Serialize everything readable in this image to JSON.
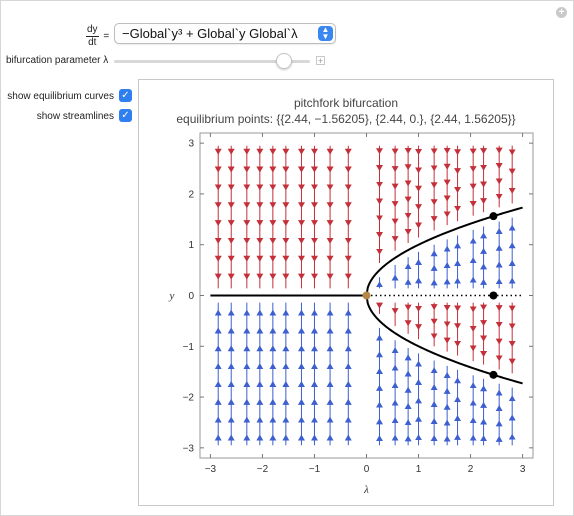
{
  "controls": {
    "ode": {
      "lhs_numerator": "dy",
      "lhs_denominator": "dt",
      "equals": "=",
      "selected": "−Global`y³ + Global`y Global`λ"
    },
    "parameter": {
      "label": "bifurcation parameter λ",
      "value": 2.44,
      "min": -3,
      "max": 3
    },
    "toggles": [
      {
        "label": "show equilibrium curves",
        "checked": true
      },
      {
        "label": "show streamlines",
        "checked": true
      }
    ]
  },
  "chart_data": {
    "type": "vector-field",
    "title": "pitchfork bifurcation",
    "subtitle": "equilibrium points: {{2.44, −1.56205}, {2.44, 0.}, {2.44, 1.56205}}",
    "xlabel": "λ",
    "ylabel": "y",
    "xlim": [
      -3.2,
      3.2
    ],
    "ylim": [
      -3.2,
      3.2
    ],
    "xticks": [
      -3,
      -2,
      -1,
      0,
      1,
      2,
      3
    ],
    "yticks": [
      -3,
      -2,
      -1,
      0,
      1,
      2,
      3
    ],
    "xtick_labels": [
      "−3",
      "−2",
      "−1",
      "0",
      "1",
      "2",
      "3"
    ],
    "ytick_labels": [
      "−3",
      "−2",
      "−1",
      "0",
      "1",
      "2",
      "3"
    ],
    "equilibrium_curves": [
      {
        "name": "stable zero branch",
        "from": -3,
        "to": 0,
        "y": 0,
        "style": "solid"
      },
      {
        "name": "unstable zero branch",
        "from": 0,
        "to": 3,
        "y": 0,
        "style": "dotted"
      },
      {
        "name": "upper branch",
        "formula": "sqrt(lambda)",
        "from": 0,
        "to": 3,
        "style": "solid"
      },
      {
        "name": "lower branch",
        "formula": "-sqrt(lambda)",
        "from": 0,
        "to": 3,
        "style": "solid"
      }
    ],
    "bifurcation_point": {
      "x": 0,
      "y": 0
    },
    "equilibrium_points": [
      [
        2.44,
        -1.56205
      ],
      [
        2.44,
        0.0
      ],
      [
        2.44,
        1.56205
      ]
    ],
    "stream_columns_x": [
      -2.85,
      -2.6,
      -2.3,
      -2.05,
      -1.8,
      -1.55,
      -1.25,
      -1.0,
      -0.7,
      -0.35,
      0.25,
      0.55,
      0.8,
      1.0,
      1.3,
      1.55,
      1.75,
      2.05,
      2.25,
      2.55,
      2.8
    ],
    "colors": {
      "downward_flow": "#c4303a",
      "upward_flow": "#3d5fcf",
      "curves": "#000000",
      "bifurcation_point": "#b5884a",
      "equilibrium_points": "#000000",
      "accent": "#2f7ff0"
    }
  }
}
